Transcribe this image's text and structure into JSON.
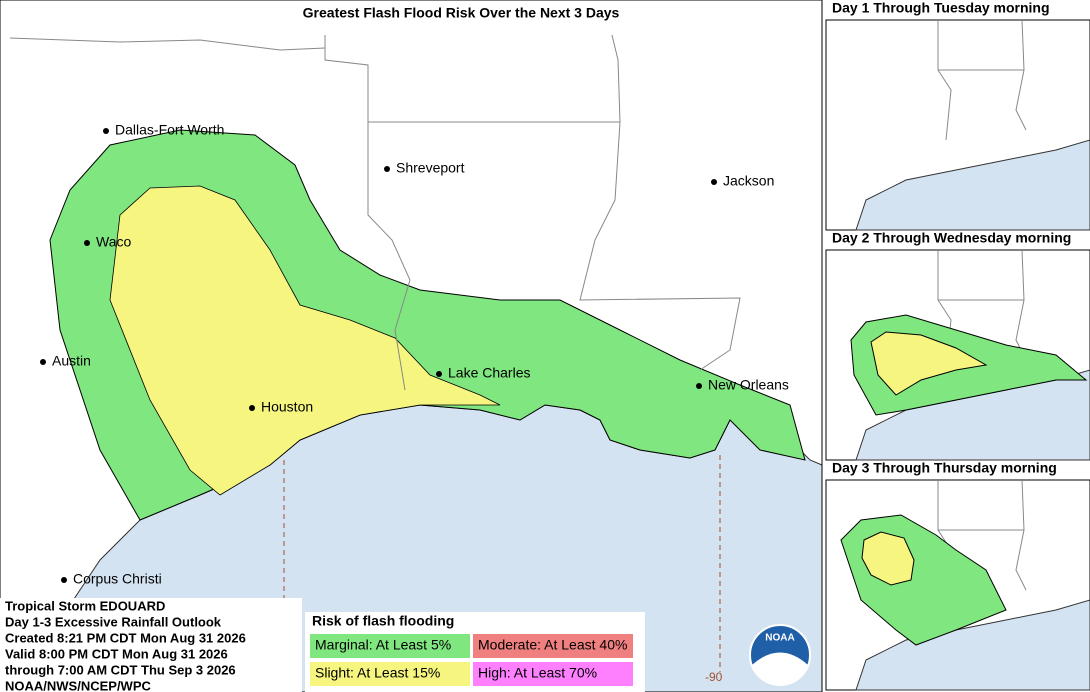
{
  "title": "Greatest Flash Flood Risk Over the Next 3 Days",
  "cities": [
    "Dallas-Fort Worth",
    "Shreveport",
    "Jackson",
    "Waco",
    "Austin",
    "Lake Charles",
    "Houston",
    "New Orleans",
    "Corpus Christi"
  ],
  "longitude_label": "-90",
  "info": [
    "Tropical Storm EDOUARD",
    "Day 1-3 Excessive Rainfall Outlook",
    "Created 8:21 PM CDT Mon Aug 31 2026",
    "Valid 8:00 PM CDT Mon Aug 31 2026",
    "through 7:00 AM CDT Thu Sep 3 2026",
    "NOAA/NWS/NCEP/WPC"
  ],
  "legend": {
    "title": "Risk of flash flooding",
    "entries": [
      {
        "label": "Marginal: At Least 5%",
        "color": "#80e680"
      },
      {
        "label": "Moderate: At Least 40%",
        "color": "#f08080"
      },
      {
        "label": "Slight: At Least 15%",
        "color": "#f5f580"
      },
      {
        "label": "High: At Least 70%",
        "color": "#ff80ff"
      }
    ]
  },
  "logo": "NOAA",
  "insets": [
    "Day 1 Through Tuesday morning",
    "Day 2 Through Wednesday morning",
    "Day 3 Through Thursday morning"
  ]
}
